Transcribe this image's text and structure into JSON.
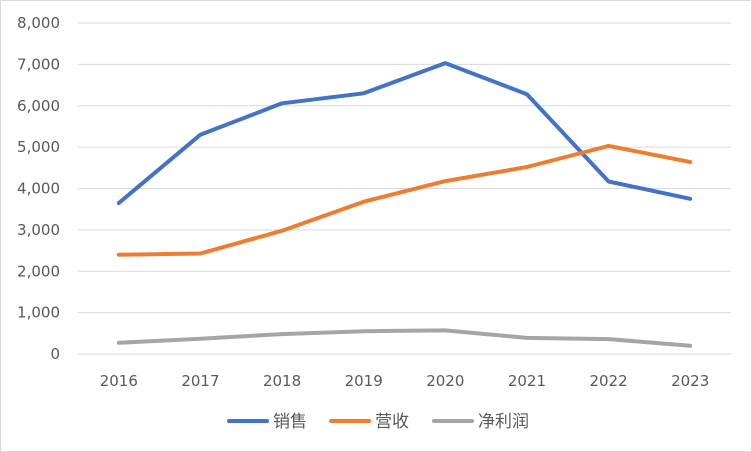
{
  "chart_data": {
    "type": "line",
    "title": "",
    "xlabel": "",
    "ylabel": "",
    "categories": [
      "2016",
      "2017",
      "2018",
      "2019",
      "2020",
      "2021",
      "2022",
      "2023"
    ],
    "ylim": [
      0,
      8000
    ],
    "y_ticks": [
      0,
      1000,
      2000,
      3000,
      4000,
      5000,
      6000,
      7000,
      8000
    ],
    "y_tick_labels": [
      "0",
      "1,000",
      "2,000",
      "3,000",
      "4,000",
      "5,000",
      "6,000",
      "7,000",
      "8,000"
    ],
    "grid": true,
    "legend_position": "bottom",
    "series": [
      {
        "name": "销售",
        "color": "#4472c4",
        "values": [
          3650,
          5300,
          6060,
          6300,
          7030,
          6280,
          4170,
          3750
        ]
      },
      {
        "name": "营收",
        "color": "#ed7d31",
        "values": [
          2400,
          2430,
          2980,
          3680,
          4180,
          4520,
          5030,
          4640
        ]
      },
      {
        "name": "净利润",
        "color": "#a5a5a5",
        "values": [
          270,
          370,
          480,
          550,
          570,
          390,
          360,
          200
        ]
      }
    ]
  }
}
